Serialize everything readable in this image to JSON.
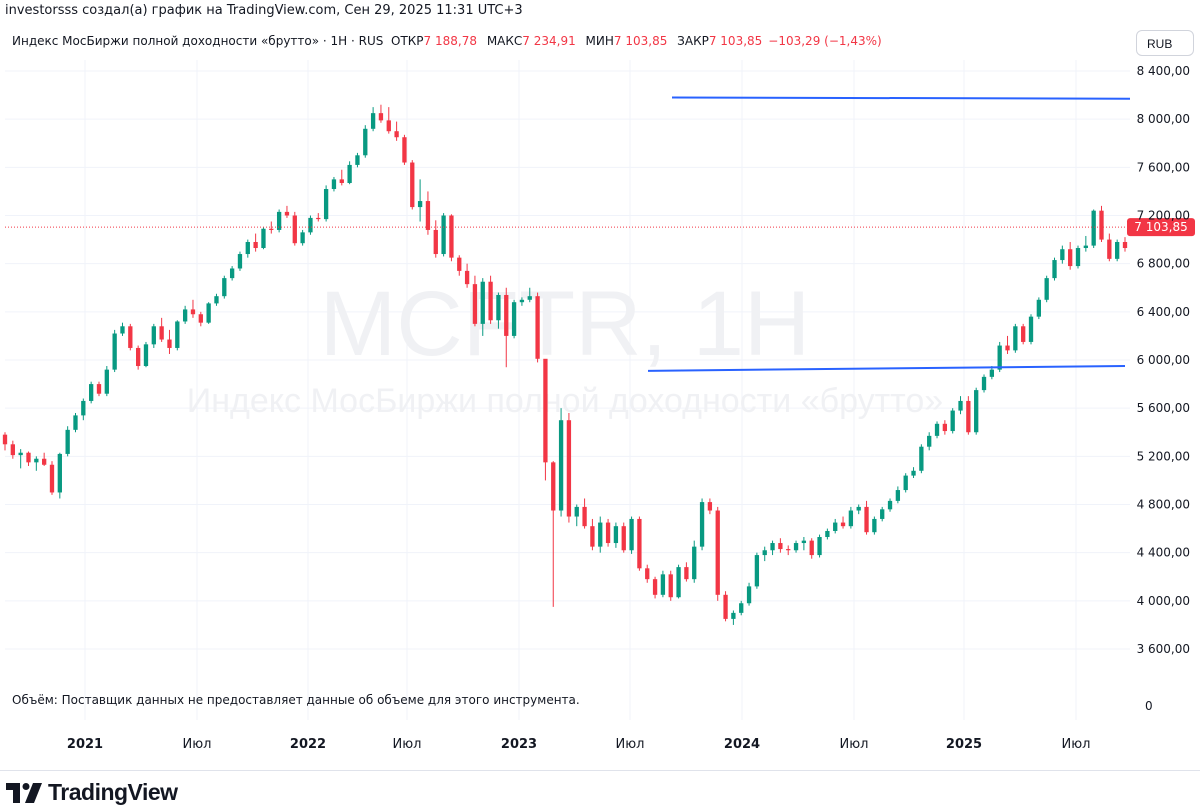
{
  "header": {
    "attribution": "investorsss создал(а) график на TradingView.com, Сен 29, 2025 11:31 UTC+3"
  },
  "legend": {
    "symbol": "Индекс МосБиржи полной доходности «брутто» · 1Н · RUS",
    "open_label": "ОТКР",
    "open": "7 188,78",
    "high_label": "МАКС",
    "high": "7 234,91",
    "low_label": "МИН",
    "low": "7 103,85",
    "close_label": "ЗАКР",
    "close": "7 103,85",
    "change": "−103,29 (−1,43%)"
  },
  "currency_button": "RUB",
  "watermark": {
    "ticker": "MCFTR, 1Н",
    "name": "Индекс МосБиржи полной доходности «брутто»"
  },
  "volume_note": "Объём: Поставщик данных не предоставляет данные об объеме для этого инструмента.",
  "last_price_label": "7 103,85",
  "volume_axis_label": "0",
  "logo_text": "TradingView",
  "colors": {
    "up": "#089981",
    "down": "#f23645",
    "trendline": "#2962ff",
    "grid": "#f0f3fa",
    "text": "#131722"
  },
  "chart_data": {
    "type": "candlestick",
    "x_axis": {
      "ticks": [
        "2021",
        "Июл",
        "2022",
        "Июл",
        "2023",
        "Июл",
        "2024",
        "Июл",
        "2025",
        "Июл"
      ]
    },
    "y_axis": {
      "ticks": [
        "8 400,00",
        "8 000,00",
        "7 600,00",
        "7 200,00",
        "6 800,00",
        "6 400,00",
        "6 000,00",
        "5 600,00",
        "5 200,00",
        "4 800,00",
        "4 400,00",
        "4 000,00",
        "3 600,00"
      ],
      "ylim": [
        3450,
        8600
      ]
    },
    "last_price": 7103.85,
    "trendlines": [
      {
        "from": [
          "2023-09",
          8180
        ],
        "to": [
          "2025-09",
          8170
        ]
      },
      {
        "from": [
          "2023-07",
          5910
        ],
        "to": [
          "2025-09",
          5950
        ]
      }
    ],
    "series": [
      {
        "name": "weekly",
        "ohlc": [
          [
            5380,
            5400,
            5250,
            5300
          ],
          [
            5300,
            5330,
            5180,
            5210
          ],
          [
            5210,
            5260,
            5100,
            5230
          ],
          [
            5230,
            5240,
            5120,
            5150
          ],
          [
            5150,
            5200,
            5080,
            5180
          ],
          [
            5180,
            5230,
            5120,
            5130
          ],
          [
            5130,
            5160,
            4880,
            4900
          ],
          [
            4900,
            5230,
            4850,
            5220
          ],
          [
            5220,
            5450,
            5200,
            5420
          ],
          [
            5420,
            5560,
            5400,
            5540
          ],
          [
            5540,
            5680,
            5500,
            5660
          ],
          [
            5660,
            5820,
            5640,
            5800
          ],
          [
            5800,
            5820,
            5700,
            5720
          ],
          [
            5720,
            5950,
            5700,
            5920
          ],
          [
            5920,
            6250,
            5900,
            6220
          ],
          [
            6220,
            6310,
            6200,
            6280
          ],
          [
            6280,
            6300,
            6080,
            6100
          ],
          [
            6100,
            6120,
            5920,
            5950
          ],
          [
            5950,
            6150,
            5940,
            6130
          ],
          [
            6130,
            6300,
            6100,
            6280
          ],
          [
            6280,
            6350,
            6150,
            6170
          ],
          [
            6170,
            6250,
            6050,
            6100
          ],
          [
            6100,
            6330,
            6080,
            6320
          ],
          [
            6320,
            6450,
            6300,
            6420
          ],
          [
            6420,
            6500,
            6350,
            6380
          ],
          [
            6380,
            6400,
            6280,
            6310
          ],
          [
            6310,
            6480,
            6300,
            6470
          ],
          [
            6470,
            6550,
            6450,
            6530
          ],
          [
            6530,
            6700,
            6510,
            6680
          ],
          [
            6680,
            6780,
            6660,
            6760
          ],
          [
            6760,
            6900,
            6740,
            6880
          ],
          [
            6880,
            7000,
            6850,
            6980
          ],
          [
            6980,
            7050,
            6900,
            6930
          ],
          [
            6930,
            7100,
            6920,
            7090
          ],
          [
            7090,
            7150,
            7050,
            7080
          ],
          [
            7080,
            7250,
            7060,
            7230
          ],
          [
            7230,
            7280,
            7180,
            7200
          ],
          [
            7200,
            7230,
            6950,
            6970
          ],
          [
            6970,
            7080,
            6950,
            7060
          ],
          [
            7060,
            7200,
            7040,
            7180
          ],
          [
            7180,
            7220,
            7150,
            7170
          ],
          [
            7170,
            7450,
            7150,
            7420
          ],
          [
            7420,
            7520,
            7400,
            7500
          ],
          [
            7500,
            7580,
            7450,
            7470
          ],
          [
            7470,
            7650,
            7460,
            7620
          ],
          [
            7620,
            7720,
            7600,
            7700
          ],
          [
            7700,
            7950,
            7680,
            7920
          ],
          [
            7920,
            8100,
            7900,
            8050
          ],
          [
            8050,
            8120,
            7970,
            7990
          ],
          [
            7990,
            8100,
            7880,
            7900
          ],
          [
            7900,
            7980,
            7820,
            7850
          ],
          [
            7850,
            7870,
            7620,
            7640
          ],
          [
            7640,
            7660,
            7250,
            7270
          ],
          [
            7270,
            7500,
            7150,
            7320
          ],
          [
            7320,
            7400,
            7040,
            7080
          ],
          [
            7080,
            7160,
            6850,
            6880
          ],
          [
            6880,
            7220,
            6860,
            7200
          ],
          [
            7200,
            7210,
            6820,
            6850
          ],
          [
            6850,
            6870,
            6700,
            6740
          ],
          [
            6740,
            6800,
            6600,
            6630
          ],
          [
            6630,
            6700,
            6280,
            6300
          ],
          [
            6300,
            6680,
            6200,
            6650
          ],
          [
            6650,
            6700,
            6300,
            6330
          ],
          [
            6330,
            6560,
            6260,
            6540
          ],
          [
            6540,
            6600,
            5940,
            6200
          ],
          [
            6200,
            6500,
            6180,
            6480
          ],
          [
            6480,
            6520,
            6450,
            6500
          ],
          [
            6500,
            6600,
            6480,
            6530
          ],
          [
            6530,
            6560,
            5980,
            6010
          ],
          [
            6010,
            5960,
            5000,
            5150
          ],
          [
            5150,
            5160,
            3950,
            4750
          ],
          [
            4750,
            5600,
            4700,
            5500
          ],
          [
            5500,
            5560,
            4650,
            4700
          ],
          [
            4700,
            4800,
            4620,
            4780
          ],
          [
            4780,
            4850,
            4600,
            4620
          ],
          [
            4620,
            4680,
            4420,
            4450
          ],
          [
            4450,
            4700,
            4400,
            4650
          ],
          [
            4650,
            4680,
            4450,
            4480
          ],
          [
            4480,
            4650,
            4440,
            4620
          ],
          [
            4620,
            4650,
            4400,
            4420
          ],
          [
            4420,
            4700,
            4390,
            4680
          ],
          [
            4680,
            4700,
            4250,
            4270
          ],
          [
            4270,
            4300,
            4150,
            4180
          ],
          [
            4180,
            4200,
            4020,
            4050
          ],
          [
            4050,
            4250,
            4030,
            4220
          ],
          [
            4220,
            4250,
            4000,
            4030
          ],
          [
            4030,
            4300,
            4020,
            4280
          ],
          [
            4280,
            4320,
            4160,
            4180
          ],
          [
            4180,
            4500,
            4150,
            4450
          ],
          [
            4450,
            4850,
            4420,
            4820
          ],
          [
            4820,
            4850,
            4720,
            4750
          ],
          [
            4750,
            4780,
            4000,
            4050
          ],
          [
            4050,
            4080,
            3830,
            3850
          ],
          [
            3850,
            3920,
            3800,
            3900
          ],
          [
            3900,
            4000,
            3880,
            3980
          ],
          [
            3980,
            4150,
            3960,
            4120
          ],
          [
            4120,
            4400,
            4100,
            4380
          ],
          [
            4380,
            4450,
            4330,
            4420
          ],
          [
            4420,
            4500,
            4380,
            4480
          ],
          [
            4480,
            4520,
            4400,
            4430
          ],
          [
            4430,
            4460,
            4380,
            4420
          ],
          [
            4420,
            4500,
            4400,
            4480
          ],
          [
            4480,
            4530,
            4420,
            4500
          ],
          [
            4500,
            4520,
            4350,
            4380
          ],
          [
            4380,
            4550,
            4360,
            4530
          ],
          [
            4530,
            4600,
            4510,
            4580
          ],
          [
            4580,
            4680,
            4560,
            4650
          ],
          [
            4650,
            4700,
            4600,
            4620
          ],
          [
            4620,
            4780,
            4600,
            4750
          ],
          [
            4750,
            4800,
            4720,
            4780
          ],
          [
            4780,
            4830,
            4550,
            4570
          ],
          [
            4570,
            4700,
            4550,
            4680
          ],
          [
            4680,
            4780,
            4660,
            4760
          ],
          [
            4760,
            4850,
            4740,
            4830
          ],
          [
            4830,
            4950,
            4810,
            4920
          ],
          [
            4920,
            5060,
            4900,
            5040
          ],
          [
            5040,
            5110,
            5020,
            5080
          ],
          [
            5080,
            5300,
            5060,
            5280
          ],
          [
            5280,
            5400,
            5250,
            5370
          ],
          [
            5370,
            5490,
            5350,
            5470
          ],
          [
            5470,
            5500,
            5380,
            5410
          ],
          [
            5410,
            5600,
            5390,
            5580
          ],
          [
            5580,
            5700,
            5550,
            5660
          ],
          [
            5660,
            5700,
            5380,
            5400
          ],
          [
            5400,
            5770,
            5380,
            5750
          ],
          [
            5750,
            5880,
            5730,
            5860
          ],
          [
            5860,
            5950,
            5840,
            5920
          ],
          [
            5920,
            6150,
            5900,
            6120
          ],
          [
            6120,
            6200,
            6050,
            6080
          ],
          [
            6080,
            6300,
            6060,
            6280
          ],
          [
            6280,
            6300,
            6130,
            6150
          ],
          [
            6150,
            6380,
            6130,
            6360
          ],
          [
            6360,
            6520,
            6340,
            6500
          ],
          [
            6500,
            6700,
            6480,
            6680
          ],
          [
            6680,
            6850,
            6660,
            6830
          ],
          [
            6830,
            6950,
            6800,
            6920
          ],
          [
            6920,
            6980,
            6750,
            6780
          ],
          [
            6780,
            6950,
            6760,
            6930
          ],
          [
            6930,
            7030,
            6900,
            6950
          ],
          [
            6950,
            7250,
            6930,
            7240
          ],
          [
            7240,
            7280,
            6980,
            7000
          ],
          [
            7000,
            7050,
            6820,
            6840
          ],
          [
            6840,
            7000,
            6820,
            6980
          ],
          [
            6980,
            7020,
            6900,
            6930
          ]
        ]
      }
    ]
  }
}
